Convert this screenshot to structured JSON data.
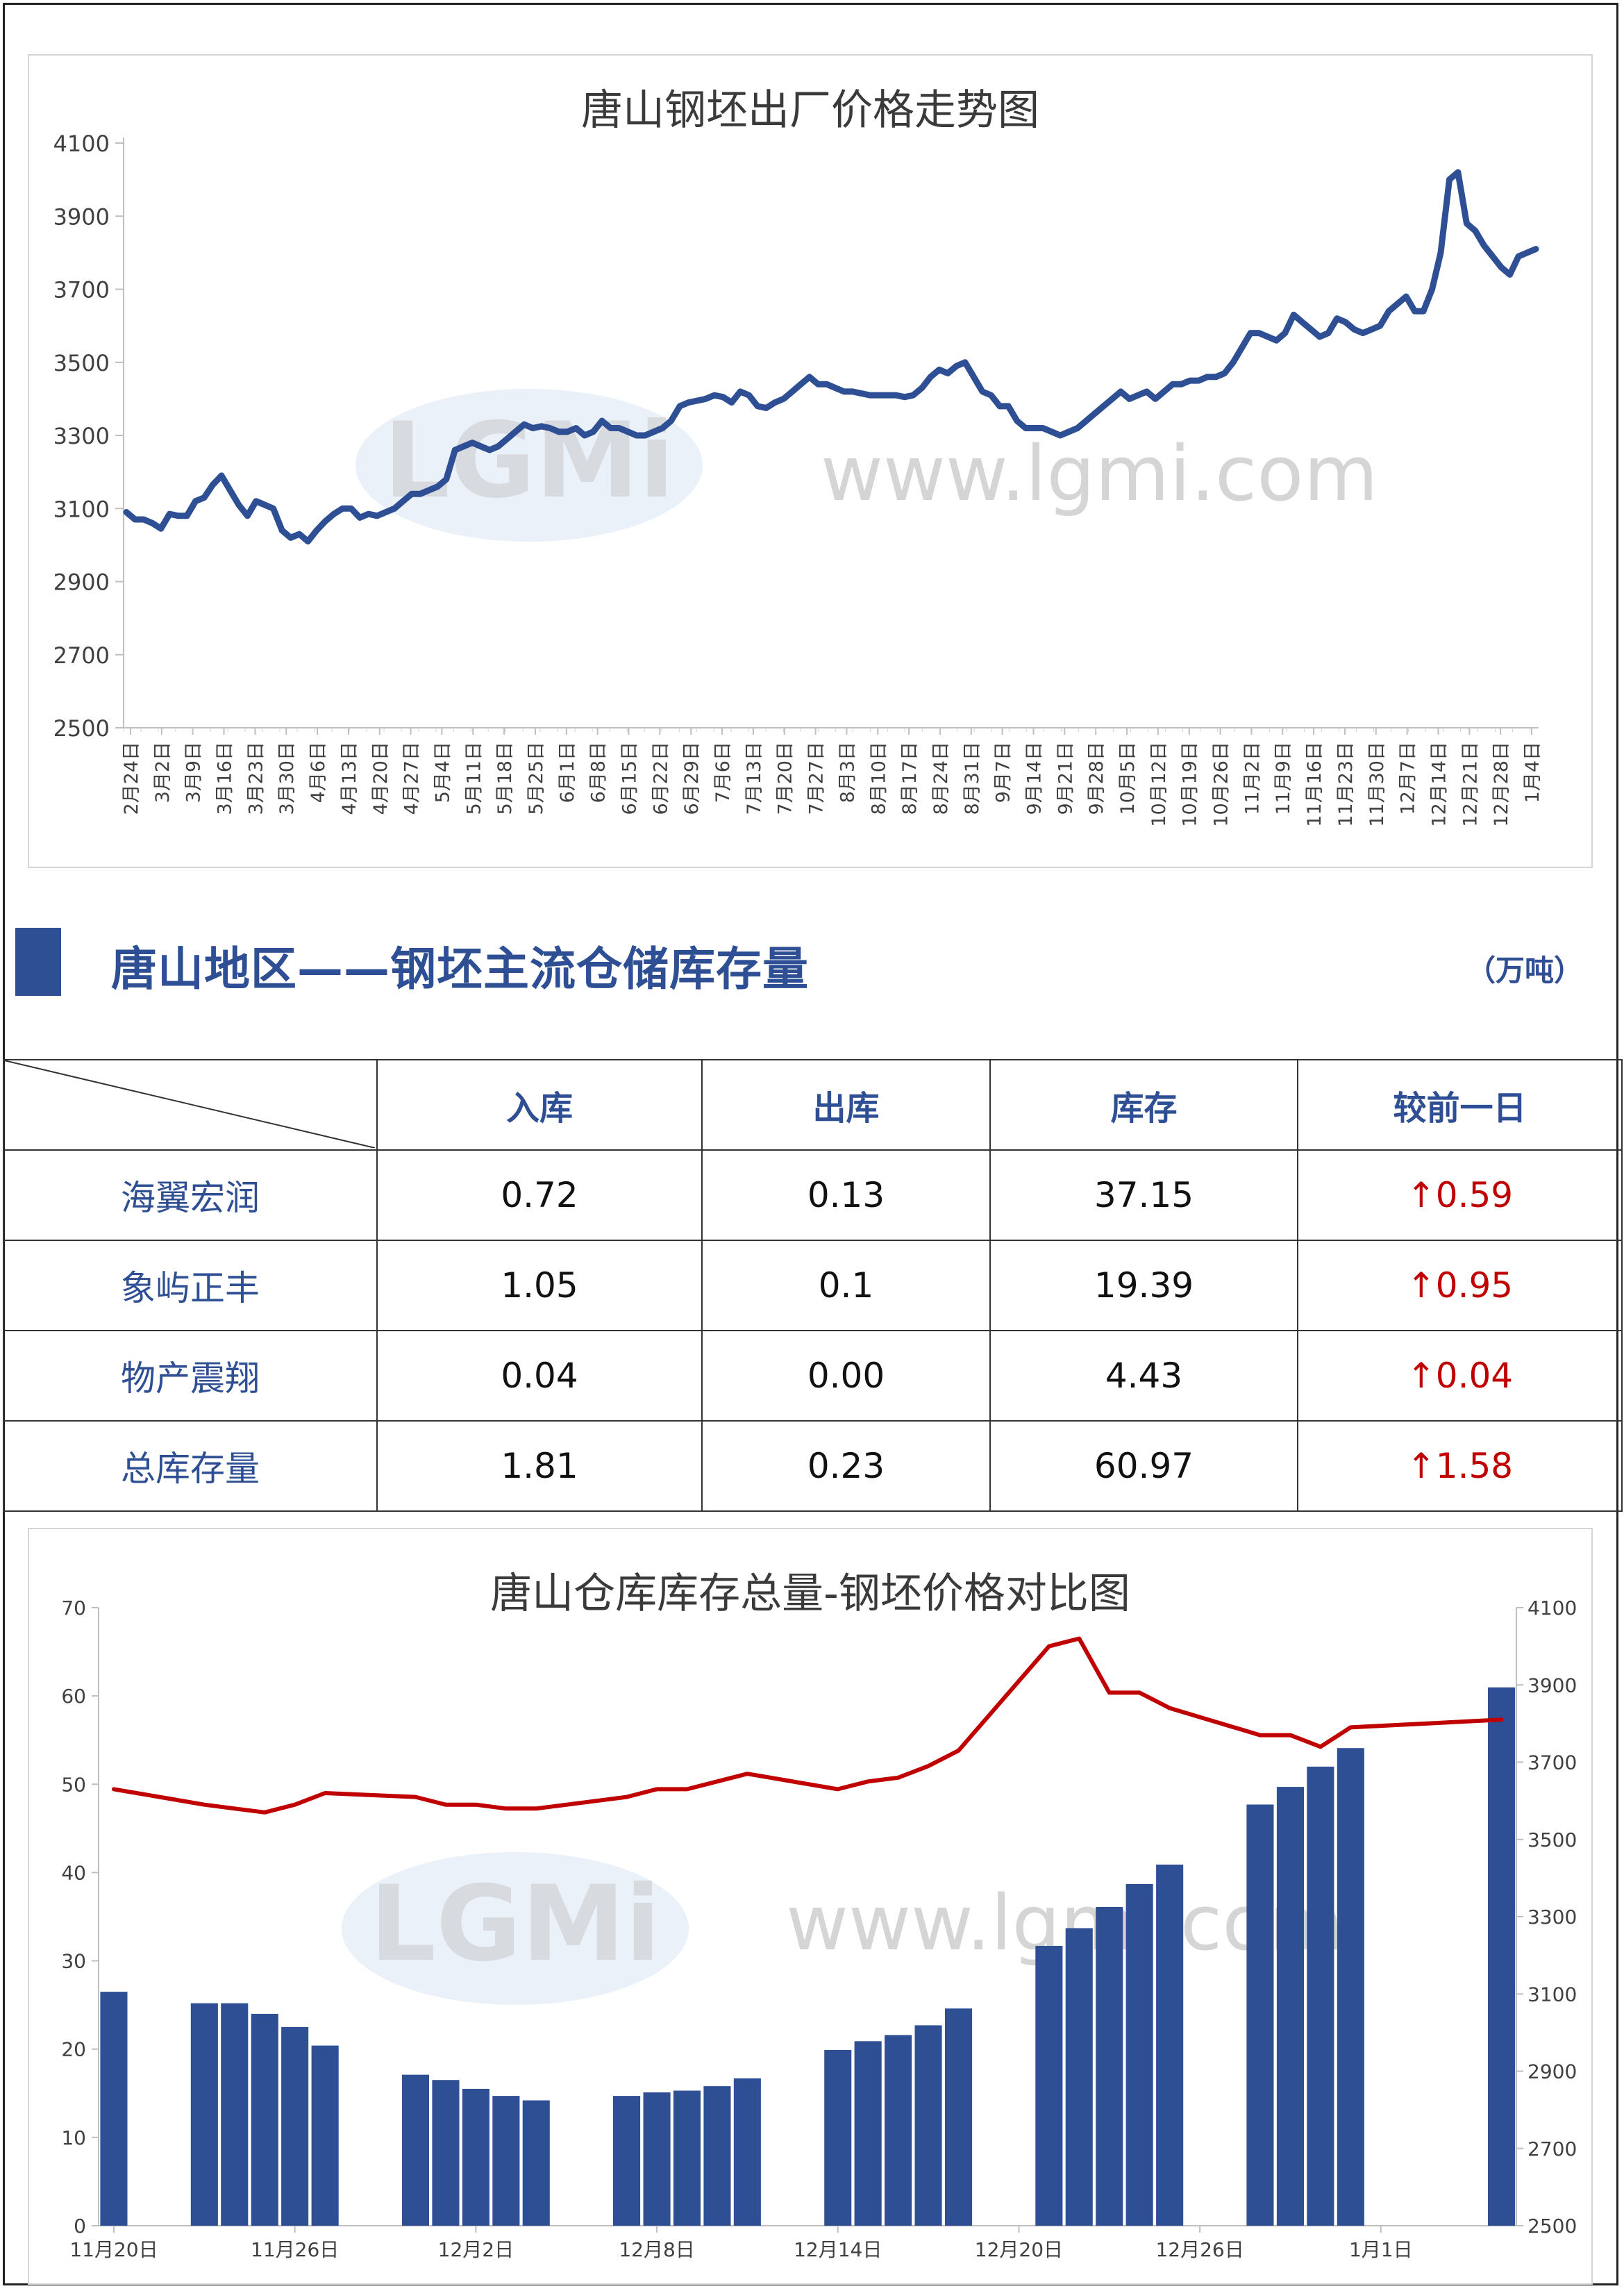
{
  "chart1": {
    "title": "唐山钢坯出厂价格走势图",
    "type": "line",
    "y_ticks": [
      "4100",
      "3900",
      "3700",
      "3500",
      "3300",
      "3100",
      "2900",
      "2700",
      "2500"
    ],
    "ylim": [
      2500,
      4100
    ],
    "x_labels": [
      "2月24日",
      "3月2日",
      "3月9日",
      "3月16日",
      "3月23日",
      "3月30日",
      "4月6日",
      "4月13日",
      "4月20日",
      "4月27日",
      "5月4日",
      "5月11日",
      "5月18日",
      "5月25日",
      "6月1日",
      "6月8日",
      "6月15日",
      "6月22日",
      "6月29日",
      "7月6日",
      "7月13日",
      "7月20日",
      "7月27日",
      "8月3日",
      "8月10日",
      "8月17日",
      "8月24日",
      "8月31日",
      "9月7日",
      "9月14日",
      "9月21日",
      "9月28日",
      "10月5日",
      "10月12日",
      "10月19日",
      "10月26日",
      "11月2日",
      "11月9日",
      "11月16日",
      "11月23日",
      "11月30日",
      "12月7日",
      "12月14日",
      "12月21日",
      "12月28日",
      "1月4日"
    ],
    "series_color": "#2e4f94",
    "values": [
      3090,
      3070,
      3070,
      3060,
      3045,
      3085,
      3080,
      3080,
      3120,
      3130,
      3165,
      3190,
      3150,
      3110,
      3080,
      3120,
      3110,
      3100,
      3040,
      3020,
      3030,
      3010,
      3040,
      3065,
      3085,
      3100,
      3100,
      3075,
      3085,
      3080,
      3090,
      3100,
      3120,
      3140,
      3140,
      3150,
      3160,
      3180,
      3260,
      3270,
      3280,
      3270,
      3260,
      3270,
      3290,
      3310,
      3330,
      3320,
      3325,
      3320,
      3310,
      3310,
      3320,
      3300,
      3310,
      3340,
      3320,
      3320,
      3310,
      3300,
      3300,
      3310,
      3320,
      3340,
      3380,
      3390,
      3395,
      3400,
      3410,
      3405,
      3390,
      3420,
      3410,
      3380,
      3375,
      3390,
      3400,
      3420,
      3440,
      3460,
      3440,
      3440,
      3430,
      3420,
      3420,
      3415,
      3410,
      3410,
      3410,
      3410,
      3405,
      3410,
      3430,
      3460,
      3480,
      3470,
      3490,
      3500,
      3460,
      3420,
      3410,
      3380,
      3380,
      3340,
      3320,
      3320,
      3320,
      3310,
      3300,
      3310,
      3320,
      3340,
      3360,
      3380,
      3400,
      3420,
      3400,
      3410,
      3420,
      3400,
      3420,
      3440,
      3440,
      3450,
      3450,
      3460,
      3460,
      3470,
      3500,
      3540,
      3580,
      3580,
      3570,
      3560,
      3580,
      3630,
      3610,
      3590,
      3570,
      3580,
      3620,
      3610,
      3590,
      3580,
      3590,
      3600,
      3640,
      3660,
      3680,
      3640,
      3640,
      3700,
      3800,
      4000,
      4020,
      3880,
      3860,
      3820,
      3790,
      3760,
      3740,
      3790,
      3800,
      3810
    ]
  },
  "inventory": {
    "title": "唐山地区——钢坯主流仓储库存量",
    "unit": "（万吨）",
    "headers": [
      "入库",
      "出库",
      "库存",
      "较前一日"
    ],
    "rows": [
      {
        "name": "海翼宏润",
        "in": "0.72",
        "out": "0.13",
        "stock": "37.15",
        "change": "↑0.59"
      },
      {
        "name": "象屿正丰",
        "in": "1.05",
        "out": "0.1",
        "stock": "19.39",
        "change": "↑0.95"
      },
      {
        "name": "物产震翔",
        "in": "0.04",
        "out": "0.00",
        "stock": "4.43",
        "change": "↑0.04"
      },
      {
        "name": "总库存量",
        "in": "1.81",
        "out": "0.23",
        "stock": "60.97",
        "change": "↑1.58"
      }
    ]
  },
  "chart2": {
    "title": "唐山仓库库存总量-钢坯价格对比图",
    "type": "bar+line",
    "left_ticks": [
      "70",
      "60",
      "50",
      "40",
      "30",
      "20",
      "10",
      "0"
    ],
    "right_ticks": [
      "4100",
      "3900",
      "3700",
      "3500",
      "3300",
      "3100",
      "2900",
      "2700",
      "2500"
    ],
    "left_lim": [
      0,
      70
    ],
    "right_lim": [
      2500,
      4100
    ],
    "x_labels": [
      "11月20日",
      "11月26日",
      "12月2日",
      "12月8日",
      "12月14日",
      "12月20日",
      "12月26日",
      "1月1日"
    ],
    "bar_color": "#2e4f94",
    "line_color": "#c00000",
    "day_count": 47,
    "bars": [
      {
        "day": 0,
        "value": 26.5
      },
      {
        "day": 3,
        "value": 25.2
      },
      {
        "day": 4,
        "value": 25.2
      },
      {
        "day": 5,
        "value": 24.0
      },
      {
        "day": 6,
        "value": 22.5
      },
      {
        "day": 7,
        "value": 20.4
      },
      {
        "day": 10,
        "value": 17.1
      },
      {
        "day": 11,
        "value": 16.5
      },
      {
        "day": 12,
        "value": 15.5
      },
      {
        "day": 13,
        "value": 14.7
      },
      {
        "day": 14,
        "value": 14.2
      },
      {
        "day": 17,
        "value": 14.7
      },
      {
        "day": 18,
        "value": 15.1
      },
      {
        "day": 19,
        "value": 15.3
      },
      {
        "day": 20,
        "value": 15.8
      },
      {
        "day": 21,
        "value": 16.7
      },
      {
        "day": 24,
        "value": 19.9
      },
      {
        "day": 25,
        "value": 20.9
      },
      {
        "day": 26,
        "value": 21.6
      },
      {
        "day": 27,
        "value": 22.7
      },
      {
        "day": 28,
        "value": 24.6
      },
      {
        "day": 31,
        "value": 31.7
      },
      {
        "day": 32,
        "value": 33.7
      },
      {
        "day": 33,
        "value": 36.1
      },
      {
        "day": 34,
        "value": 38.7
      },
      {
        "day": 35,
        "value": 40.9
      },
      {
        "day": 38,
        "value": 47.7
      },
      {
        "day": 39,
        "value": 49.7
      },
      {
        "day": 40,
        "value": 52.0
      },
      {
        "day": 41,
        "value": 54.1
      },
      {
        "day": 46,
        "value": 60.97
      }
    ],
    "price_line": [
      {
        "day": 0,
        "value": 3630
      },
      {
        "day": 3,
        "value": 3590
      },
      {
        "day": 4,
        "value": 3580
      },
      {
        "day": 5,
        "value": 3570
      },
      {
        "day": 6,
        "value": 3590
      },
      {
        "day": 7,
        "value": 3620
      },
      {
        "day": 10,
        "value": 3610
      },
      {
        "day": 11,
        "value": 3590
      },
      {
        "day": 12,
        "value": 3590
      },
      {
        "day": 13,
        "value": 3580
      },
      {
        "day": 14,
        "value": 3580
      },
      {
        "day": 17,
        "value": 3610
      },
      {
        "day": 18,
        "value": 3630
      },
      {
        "day": 19,
        "value": 3630
      },
      {
        "day": 20,
        "value": 3650
      },
      {
        "day": 21,
        "value": 3670
      },
      {
        "day": 24,
        "value": 3630
      },
      {
        "day": 25,
        "value": 3650
      },
      {
        "day": 26,
        "value": 3660
      },
      {
        "day": 27,
        "value": 3690
      },
      {
        "day": 28,
        "value": 3730
      },
      {
        "day": 31,
        "value": 4000
      },
      {
        "day": 32,
        "value": 4020
      },
      {
        "day": 33,
        "value": 3880
      },
      {
        "day": 34,
        "value": 3880
      },
      {
        "day": 35,
        "value": 3840
      },
      {
        "day": 38,
        "value": 3770
      },
      {
        "day": 39,
        "value": 3770
      },
      {
        "day": 40,
        "value": 3740
      },
      {
        "day": 41,
        "value": 3790
      },
      {
        "day": 46,
        "value": 3810
      }
    ]
  },
  "watermark": {
    "url_text": "www.lgmi.com",
    "logo_text": "LGMi"
  }
}
